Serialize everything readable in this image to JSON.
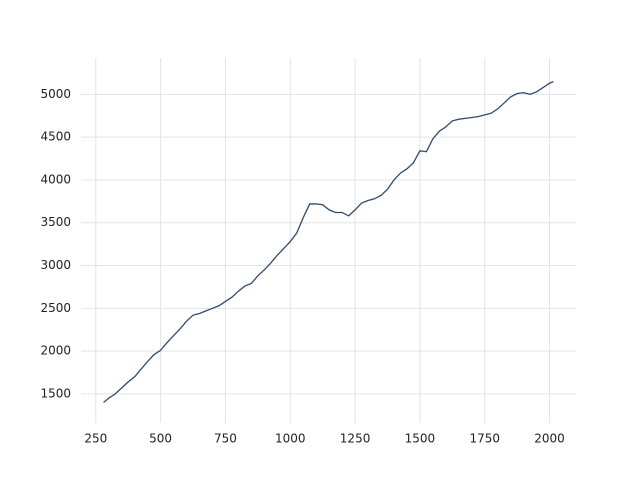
{
  "chart_data": {
    "type": "line",
    "x": [
      280,
      300,
      325,
      350,
      375,
      400,
      425,
      450,
      475,
      500,
      525,
      550,
      575,
      600,
      625,
      650,
      675,
      700,
      725,
      750,
      775,
      800,
      825,
      850,
      875,
      900,
      925,
      950,
      975,
      1000,
      1025,
      1050,
      1075,
      1100,
      1125,
      1150,
      1175,
      1200,
      1225,
      1250,
      1275,
      1300,
      1325,
      1350,
      1375,
      1400,
      1425,
      1450,
      1475,
      1500,
      1525,
      1550,
      1575,
      1600,
      1625,
      1650,
      1675,
      1700,
      1725,
      1750,
      1775,
      1800,
      1825,
      1850,
      1875,
      1900,
      1925,
      1950,
      1975,
      2000,
      2015
    ],
    "series": [
      {
        "color": "#2e4a6e",
        "values": [
          1400,
          1450,
          1500,
          1570,
          1640,
          1700,
          1790,
          1880,
          1960,
          2010,
          2100,
          2180,
          2260,
          2350,
          2420,
          2440,
          2470,
          2500,
          2530,
          2580,
          2630,
          2700,
          2760,
          2790,
          2880,
          2950,
          3030,
          3120,
          3200,
          3280,
          3380,
          3560,
          3720,
          3720,
          3710,
          3650,
          3620,
          3620,
          3580,
          3650,
          3730,
          3760,
          3780,
          3820,
          3890,
          4000,
          4080,
          4130,
          4200,
          4340,
          4330,
          4480,
          4570,
          4620,
          4690,
          4710,
          4720,
          4730,
          4740,
          4760,
          4780,
          4830,
          4900,
          4970,
          5010,
          5020,
          5000,
          5030,
          5080,
          5130,
          5150
        ]
      }
    ],
    "xlim": [
      193,
      2102
    ],
    "ylim": [
      1160,
      5425
    ],
    "xticks": [
      250,
      500,
      750,
      1000,
      1250,
      1500,
      1750,
      2000
    ],
    "yticks": [
      1500,
      2000,
      2500,
      3000,
      3500,
      4000,
      4500,
      5000
    ],
    "grid": true
  }
}
